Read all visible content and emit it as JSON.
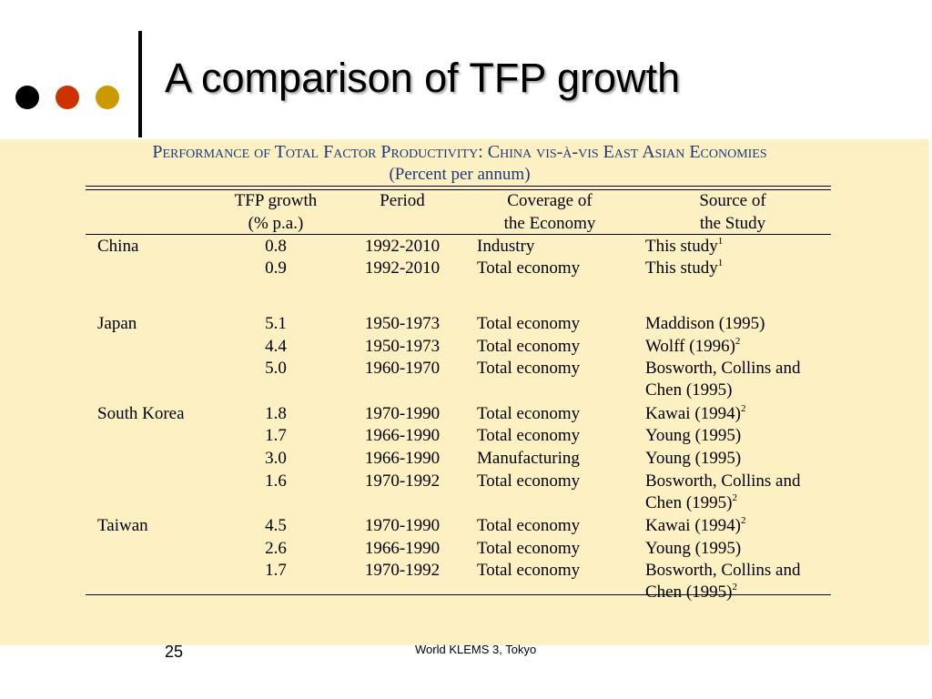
{
  "slide": {
    "title": "A comparison of TFP growth",
    "bullet_colors": [
      "#000000",
      "#cc3300",
      "#cc9900"
    ],
    "page_number": "25",
    "footer": "World KLEMS 3, Tokyo"
  },
  "table": {
    "caption": "Performance of Total Factor Productivity: China vis-à-vis East Asian Economies",
    "subcaption": "(Percent per annum)",
    "headers": {
      "tfp": [
        "TFP growth",
        "(% p.a.)"
      ],
      "period": [
        "Period"
      ],
      "coverage": [
        "Coverage of",
        "the Economy"
      ],
      "source": [
        "Source of",
        "the Study"
      ]
    },
    "rows": [
      {
        "country": "China",
        "tfp": "0.8",
        "period": "1992-2010",
        "coverage": "Industry",
        "source": "This study",
        "note": "1"
      },
      {
        "country": "",
        "tfp": "0.9",
        "period": "1992-2010",
        "coverage": "Total economy",
        "source": "This study",
        "note": "1"
      },
      {
        "country": "Japan",
        "tfp": "5.1",
        "period": "1950-1973",
        "coverage": "Total economy",
        "source": "Maddison (1995)",
        "note": ""
      },
      {
        "country": "",
        "tfp": "4.4",
        "period": "1950-1973",
        "coverage": "Total economy",
        "source": "Wolff (1996)",
        "note": "2"
      },
      {
        "country": "",
        "tfp": "5.0",
        "period": "1960-1970",
        "coverage": "Total economy",
        "source": "Bosworth, Collins and",
        "source2": "Chen (1995)",
        "note": ""
      },
      {
        "country": "South Korea",
        "tfp": "1.8",
        "period": "1970-1990",
        "coverage": "Total economy",
        "source": "Kawai (1994)",
        "note": "2"
      },
      {
        "country": "",
        "tfp": "1.7",
        "period": "1966-1990",
        "coverage": "Total economy",
        "source": "Young (1995)",
        "note": ""
      },
      {
        "country": "",
        "tfp": "3.0",
        "period": "1966-1990",
        "coverage": "Manufacturing",
        "source": "Young (1995)",
        "note": ""
      },
      {
        "country": "",
        "tfp": "1.6",
        "period": "1970-1992",
        "coverage": "Total economy",
        "source": "Bosworth, Collins and",
        "source2": "Chen (1995)",
        "note": "2"
      },
      {
        "country": "Taiwan",
        "tfp": "4.5",
        "period": "1970-1990",
        "coverage": "Total economy",
        "source": "Kawai (1994)",
        "note": "2"
      },
      {
        "country": "",
        "tfp": "2.6",
        "period": "1966-1990",
        "coverage": "Total economy",
        "source": "Young (1995)",
        "note": ""
      },
      {
        "country": "",
        "tfp": "1.7",
        "period": "1970-1992",
        "coverage": "Total economy",
        "source": "Bosworth, Collins and",
        "source2": "Chen (1995)",
        "note": "2"
      }
    ]
  }
}
